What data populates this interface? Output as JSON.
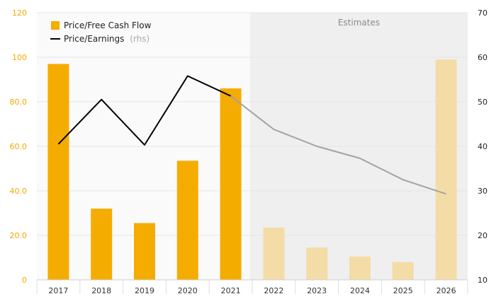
{
  "chart_data": {
    "type": "bar",
    "categories": [
      "2017",
      "2018",
      "2019",
      "2020",
      "2021",
      "2022",
      "2023",
      "2024",
      "2025",
      "2026"
    ],
    "estimate_start_index": 5,
    "estimates_label": "Estimates",
    "series": [
      {
        "name": "Price/Free Cash Flow",
        "axis": "left",
        "kind": "bar",
        "values": [
          97,
          32,
          25.5,
          53.5,
          86,
          23.5,
          14.5,
          10.5,
          8,
          99
        ]
      },
      {
        "name": "Price/Earnings",
        "name_suffix": "(rhs)",
        "axis": "right",
        "kind": "line",
        "values": [
          40.5,
          50.5,
          40.3,
          55.8,
          51.3,
          43.8,
          40.0,
          37.3,
          32.5,
          29.3
        ]
      }
    ],
    "y_left": {
      "min": 0,
      "max": 120,
      "ticks": [
        0,
        20,
        40,
        60,
        80,
        100,
        120
      ],
      "tick_labels": [
        "0",
        "20.0",
        "40.0",
        "60.0",
        "80.0",
        "100",
        "120"
      ]
    },
    "y_right": {
      "min": 10,
      "max": 70,
      "ticks": [
        10,
        20,
        30,
        40,
        50,
        60,
        70
      ],
      "tick_labels": [
        "10",
        "20",
        "30",
        "40",
        "50",
        "60",
        "70"
      ]
    },
    "grid": true,
    "legend_position": "top-left",
    "colors": {
      "bar_actual": "#f5ac00",
      "bar_estimate": "#f4dca7",
      "line_actual": "#000000",
      "line_estimate": "#a3a3a3",
      "estimate_band": "#efefef",
      "left_axis_text": "#f5a800"
    }
  }
}
